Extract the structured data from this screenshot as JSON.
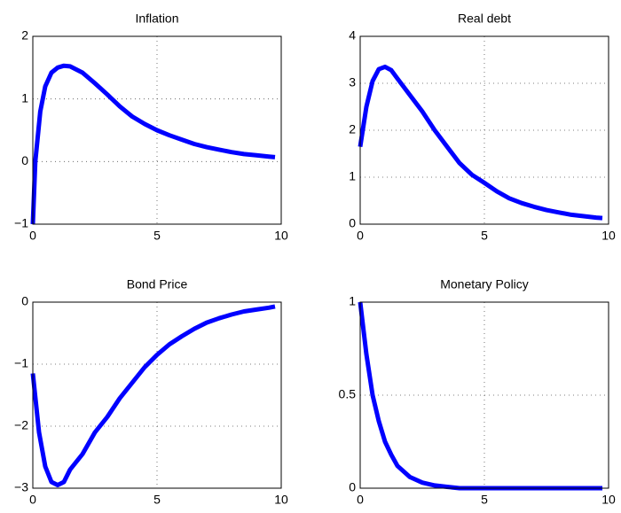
{
  "chart_data": [
    {
      "type": "line",
      "title": "Inflation",
      "x": [
        0,
        0.1,
        0.3,
        0.5,
        0.75,
        1,
        1.25,
        1.5,
        2,
        2.5,
        3,
        3.5,
        4,
        4.5,
        5,
        5.5,
        6,
        6.5,
        7,
        7.5,
        8,
        8.5,
        9,
        9.5,
        9.75
      ],
      "values": [
        -1,
        0,
        0.8,
        1.2,
        1.42,
        1.5,
        1.53,
        1.52,
        1.42,
        1.25,
        1.07,
        0.88,
        0.72,
        0.6,
        0.5,
        0.42,
        0.35,
        0.28,
        0.23,
        0.19,
        0.15,
        0.12,
        0.1,
        0.08,
        0.07
      ],
      "color": "#0000ff",
      "xlim": [
        0,
        10
      ],
      "xticks": [
        0,
        5,
        10
      ],
      "ylim": [
        -1,
        2
      ],
      "yticks": [
        {
          "value": -1,
          "label": "−1"
        },
        0,
        1,
        2
      ],
      "grid": true
    },
    {
      "type": "line",
      "title": "Real debt",
      "x": [
        0,
        0.25,
        0.5,
        0.75,
        1,
        1.25,
        1.5,
        2,
        2.5,
        3,
        3.5,
        4,
        4.5,
        5,
        5.5,
        6,
        6.5,
        7,
        7.5,
        8,
        8.5,
        9,
        9.5,
        9.75
      ],
      "values": [
        1.65,
        2.5,
        3.05,
        3.3,
        3.35,
        3.28,
        3.1,
        2.75,
        2.4,
        2.0,
        1.65,
        1.3,
        1.05,
        0.88,
        0.7,
        0.55,
        0.45,
        0.37,
        0.3,
        0.25,
        0.2,
        0.17,
        0.14,
        0.13
      ],
      "color": "#0000ff",
      "xlim": [
        0,
        10
      ],
      "xticks": [
        0,
        5,
        10
      ],
      "ylim": [
        0,
        4
      ],
      "yticks": [
        0,
        1,
        2,
        3,
        4
      ],
      "grid": true
    },
    {
      "type": "line",
      "title": "Bond Price",
      "x": [
        0,
        0.25,
        0.5,
        0.75,
        1,
        1.25,
        1.5,
        2,
        2.5,
        3,
        3.5,
        4,
        4.5,
        5,
        5.5,
        6,
        6.5,
        7,
        7.5,
        8,
        8.5,
        9,
        9.5,
        9.75
      ],
      "values": [
        -1.15,
        -2.1,
        -2.65,
        -2.9,
        -2.95,
        -2.9,
        -2.7,
        -2.45,
        -2.1,
        -1.85,
        -1.55,
        -1.3,
        -1.05,
        -0.85,
        -0.68,
        -0.55,
        -0.43,
        -0.33,
        -0.26,
        -0.2,
        -0.15,
        -0.12,
        -0.09,
        -0.07
      ],
      "color": "#0000ff",
      "xlim": [
        0,
        10
      ],
      "xticks": [
        0,
        5,
        10
      ],
      "ylim": [
        -3,
        0
      ],
      "yticks": [
        {
          "value": -3,
          "label": "−3"
        },
        {
          "value": -2,
          "label": "−2"
        },
        {
          "value": -1,
          "label": "−1"
        },
        0
      ],
      "grid": true
    },
    {
      "type": "line",
      "title": "Monetary Policy",
      "x": [
        0,
        0.25,
        0.5,
        0.75,
        1,
        1.25,
        1.5,
        2,
        2.5,
        3,
        3.5,
        4,
        5,
        6,
        7,
        8,
        9,
        9.75
      ],
      "values": [
        1,
        0.72,
        0.5,
        0.36,
        0.25,
        0.18,
        0.12,
        0.06,
        0.03,
        0.015,
        0.007,
        0,
        0,
        0,
        0,
        0,
        0,
        0
      ],
      "color": "#0000ff",
      "xlim": [
        0,
        10
      ],
      "xticks": [
        0,
        5,
        10
      ],
      "ylim": [
        0,
        1
      ],
      "yticks": [
        0,
        0.5,
        1
      ],
      "grid": true
    }
  ]
}
